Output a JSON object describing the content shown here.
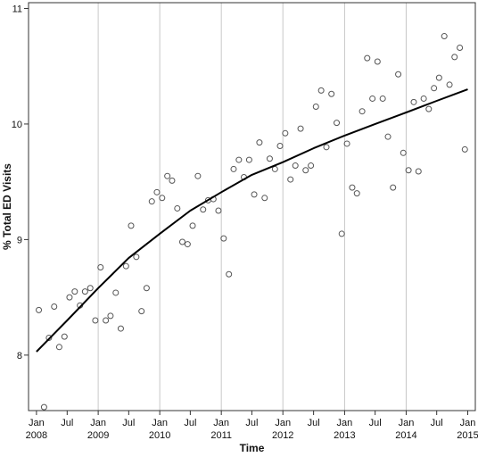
{
  "chart_data": {
    "type": "scatter",
    "xlabel": "Time",
    "ylabel": "% Total ED Visits",
    "xlim": [
      "2007-11-15",
      "2015-02-15"
    ],
    "ylim": [
      7.52,
      11.05
    ],
    "yticks": [
      8,
      9,
      10,
      11
    ],
    "ytick_labels": [
      "8",
      "9",
      "10",
      "11"
    ],
    "xticks": [
      {
        "date": "2008-01-01",
        "month": "Jan",
        "year": "2008"
      },
      {
        "date": "2008-07-01",
        "month": "Jul",
        "year": ""
      },
      {
        "date": "2009-01-01",
        "month": "Jan",
        "year": "2009"
      },
      {
        "date": "2009-07-01",
        "month": "Jul",
        "year": ""
      },
      {
        "date": "2010-01-01",
        "month": "Jan",
        "year": "2010"
      },
      {
        "date": "2010-07-01",
        "month": "Jul",
        "year": ""
      },
      {
        "date": "2011-01-01",
        "month": "Jan",
        "year": "2011"
      },
      {
        "date": "2011-07-01",
        "month": "Jul",
        "year": ""
      },
      {
        "date": "2012-01-01",
        "month": "Jan",
        "year": "2012"
      },
      {
        "date": "2012-07-01",
        "month": "Jul",
        "year": ""
      },
      {
        "date": "2013-01-01",
        "month": "Jan",
        "year": "2013"
      },
      {
        "date": "2013-07-01",
        "month": "Jul",
        "year": ""
      },
      {
        "date": "2014-01-01",
        "month": "Jan",
        "year": "2014"
      },
      {
        "date": "2014-07-01",
        "month": "Jul",
        "year": ""
      },
      {
        "date": "2015-01-01",
        "month": "Jan",
        "year": "2015"
      }
    ],
    "year_gridlines": [
      "2009-01-01",
      "2010-01-01",
      "2011-01-01",
      "2012-01-01",
      "2013-01-01",
      "2014-01-01"
    ],
    "grid": "vertical lines at each January",
    "legend": "none",
    "series": [
      {
        "kind": "scatter",
        "x": [
          "2008-01-15",
          "2008-02-15",
          "2008-03-15",
          "2008-04-15",
          "2008-05-15",
          "2008-06-15",
          "2008-07-15",
          "2008-08-15",
          "2008-09-15",
          "2008-10-15",
          "2008-11-15",
          "2008-12-15",
          "2009-01-15",
          "2009-02-15",
          "2009-03-15",
          "2009-04-15",
          "2009-05-15",
          "2009-06-15",
          "2009-07-15",
          "2009-08-15",
          "2009-09-15",
          "2009-10-15",
          "2009-11-15",
          "2009-12-15",
          "2010-01-15",
          "2010-02-15",
          "2010-03-15",
          "2010-04-15",
          "2010-05-15",
          "2010-06-15",
          "2010-07-15",
          "2010-08-15",
          "2010-09-15",
          "2010-10-15",
          "2010-11-15",
          "2010-12-15",
          "2011-01-15",
          "2011-02-15",
          "2011-03-15",
          "2011-04-15",
          "2011-05-15",
          "2011-06-15",
          "2011-07-15",
          "2011-08-15",
          "2011-09-15",
          "2011-10-15",
          "2011-11-15",
          "2011-12-15",
          "2012-01-15",
          "2012-02-15",
          "2012-03-15",
          "2012-04-15",
          "2012-05-15",
          "2012-06-15",
          "2012-07-15",
          "2012-08-15",
          "2012-09-15",
          "2012-10-15",
          "2012-11-15",
          "2012-12-15",
          "2013-01-15",
          "2013-02-15",
          "2013-03-15",
          "2013-04-15",
          "2013-05-15",
          "2013-06-15",
          "2013-07-15",
          "2013-08-15",
          "2013-09-15",
          "2013-10-15",
          "2013-11-15",
          "2013-12-15",
          "2014-01-15",
          "2014-02-15",
          "2014-03-15",
          "2014-04-15",
          "2014-05-15",
          "2014-06-15",
          "2014-07-15",
          "2014-08-15",
          "2014-09-15",
          "2014-10-15",
          "2014-11-15",
          "2014-12-15"
        ],
        "y": [
          8.39,
          7.55,
          8.15,
          8.42,
          8.07,
          8.16,
          8.5,
          8.55,
          8.43,
          8.55,
          8.58,
          8.3,
          8.76,
          8.3,
          8.34,
          8.54,
          8.23,
          8.77,
          9.12,
          8.85,
          8.38,
          8.58,
          9.33,
          9.41,
          9.36,
          9.55,
          9.51,
          9.27,
          8.98,
          8.96,
          9.12,
          9.55,
          9.26,
          9.34,
          9.35,
          9.25,
          9.01,
          8.7,
          9.61,
          9.69,
          9.54,
          9.69,
          9.39,
          9.84,
          9.36,
          9.7,
          9.61,
          9.81,
          9.92,
          9.52,
          9.64,
          9.96,
          9.6,
          9.64,
          10.15,
          10.29,
          9.8,
          10.26,
          10.01,
          9.05,
          9.83,
          9.45,
          9.4,
          10.11,
          10.57,
          10.22,
          10.54,
          10.22,
          9.89,
          9.45,
          10.43,
          9.75,
          9.6,
          10.19,
          9.59,
          10.22,
          10.13,
          10.31,
          10.4,
          10.76,
          10.34,
          10.58,
          10.66,
          9.78
        ]
      },
      {
        "kind": "line",
        "x": [
          "2008-01-01",
          "2008-07-01",
          "2009-01-01",
          "2009-07-01",
          "2010-01-01",
          "2010-07-01",
          "2011-01-01",
          "2011-07-01",
          "2012-01-01",
          "2012-07-01",
          "2013-01-01",
          "2013-07-01",
          "2014-01-01",
          "2014-07-01",
          "2015-01-01"
        ],
        "y": [
          8.03,
          8.3,
          8.58,
          8.84,
          9.05,
          9.25,
          9.41,
          9.56,
          9.67,
          9.79,
          9.9,
          10.0,
          10.1,
          10.2,
          10.3
        ]
      }
    ],
    "colors": {
      "marker_stroke": "#555555",
      "line": "#000000",
      "grid": "#c8c8c8",
      "axis": "#333333"
    }
  }
}
